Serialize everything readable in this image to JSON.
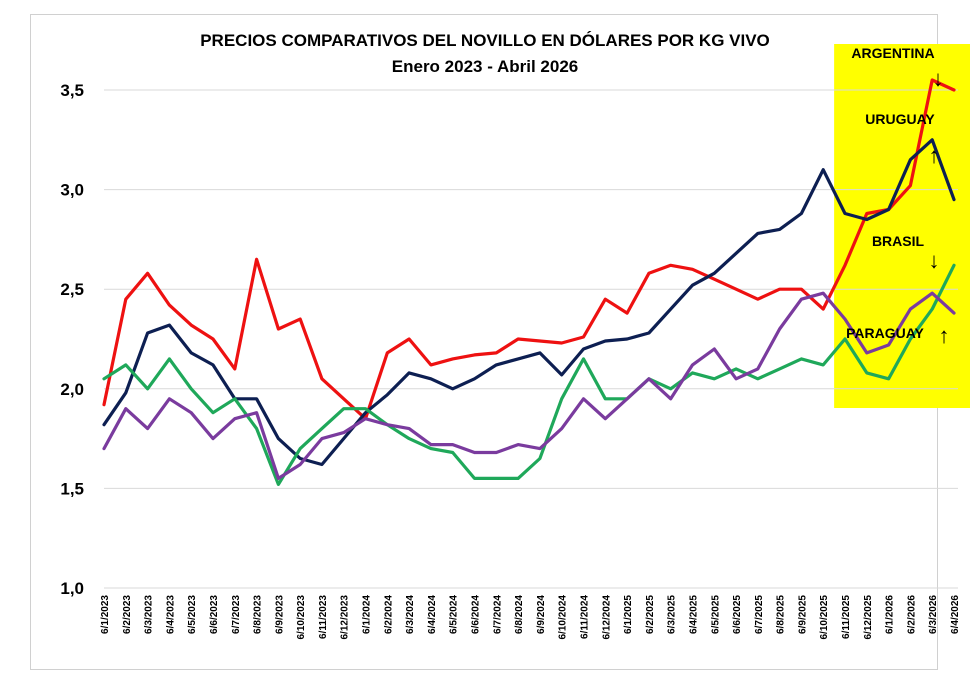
{
  "chart_data": {
    "type": "line",
    "title": "PRECIOS COMPARATIVOS DEL NOVILLO EN DÓLARES POR KG VIVO",
    "subtitle": "Enero 2023 - Abril 2026",
    "xlabel": "",
    "ylabel": "",
    "ylim": [
      1.0,
      3.5
    ],
    "yticks": [
      "1,0",
      "1,5",
      "2,0",
      "2,5",
      "3,0",
      "3,5"
    ],
    "ytick_values": [
      1.0,
      1.5,
      2.0,
      2.5,
      3.0,
      3.5
    ],
    "grid": true,
    "x": [
      "6/1/2023",
      "6/2/2023",
      "6/3/2023",
      "6/4/2023",
      "6/5/2023",
      "6/6/2023",
      "6/7/2023",
      "6/8/2023",
      "6/9/2023",
      "6/10/2023",
      "6/11/2023",
      "6/12/2023",
      "6/1/2024",
      "6/2/2024",
      "6/3/2024",
      "6/4/2024",
      "6/5/2024",
      "6/6/2024",
      "6/7/2024",
      "6/8/2024",
      "6/9/2024",
      "6/10/2024",
      "6/11/2024",
      "6/12/2024",
      "6/1/2025",
      "6/2/2025",
      "6/3/2025",
      "6/4/2025",
      "6/5/2025",
      "6/6/2025",
      "6/7/2025",
      "6/8/2025",
      "6/9/2025",
      "6/10/2025",
      "6/11/2025",
      "6/12/2025",
      "6/1/2026",
      "6/2/2026",
      "6/3/2026",
      "6/4/2026"
    ],
    "series": [
      {
        "name": "ARGENTINA",
        "color": "#ee1111",
        "values": [
          1.92,
          2.45,
          2.58,
          2.42,
          2.32,
          2.25,
          2.1,
          2.65,
          2.3,
          2.35,
          2.05,
          1.95,
          1.85,
          2.18,
          2.25,
          2.12,
          2.15,
          2.17,
          2.18,
          2.25,
          2.24,
          2.23,
          2.26,
          2.45,
          2.38,
          2.58,
          2.62,
          2.6,
          2.55,
          2.5,
          2.45,
          2.5,
          2.5,
          2.4,
          2.62,
          2.88,
          2.9,
          3.02,
          3.55,
          3.5
        ]
      },
      {
        "name": "URUGUAY",
        "color": "#0d1f52",
        "values": [
          1.82,
          1.98,
          2.28,
          2.32,
          2.18,
          2.12,
          1.95,
          1.95,
          1.75,
          1.65,
          1.62,
          1.75,
          1.88,
          1.97,
          2.08,
          2.05,
          2.0,
          2.05,
          2.12,
          2.15,
          2.18,
          2.07,
          2.2,
          2.24,
          2.25,
          2.28,
          2.4,
          2.52,
          2.58,
          2.68,
          2.78,
          2.8,
          2.88,
          3.1,
          2.88,
          2.85,
          2.9,
          3.15,
          3.25,
          2.95
        ]
      },
      {
        "name": "BRASIL",
        "color": "#1fa85a",
        "values": [
          2.05,
          2.12,
          2.0,
          2.15,
          2.0,
          1.88,
          1.95,
          1.8,
          1.52,
          1.7,
          1.8,
          1.9,
          1.9,
          1.82,
          1.75,
          1.7,
          1.68,
          1.55,
          1.55,
          1.55,
          1.65,
          1.95,
          2.15,
          1.95,
          1.95,
          2.05,
          2.0,
          2.08,
          2.05,
          2.1,
          2.05,
          2.1,
          2.15,
          2.12,
          2.25,
          2.08,
          2.05,
          2.25,
          2.4,
          2.62
        ]
      },
      {
        "name": "PARAGUAY",
        "color": "#7a3b9e",
        "values": [
          1.7,
          1.9,
          1.8,
          1.95,
          1.88,
          1.75,
          1.85,
          1.88,
          1.55,
          1.62,
          1.75,
          1.78,
          1.85,
          1.82,
          1.8,
          1.72,
          1.72,
          1.68,
          1.68,
          1.72,
          1.7,
          1.8,
          1.95,
          1.85,
          1.95,
          2.05,
          1.95,
          2.12,
          2.2,
          2.05,
          2.1,
          2.3,
          2.45,
          2.48,
          2.35,
          2.18,
          2.22,
          2.4,
          2.48,
          2.38
        ]
      }
    ],
    "annotations": [
      {
        "text": "ARGENTINA",
        "arrow": "↓"
      },
      {
        "text": "URUGUAY",
        "arrow": "↑"
      },
      {
        "text": "BRASIL",
        "arrow": "↓"
      },
      {
        "text": "PARAGUAY",
        "arrow": "↑"
      }
    ],
    "highlight": {
      "from": "6/11/2025",
      "to": "6/4/2026",
      "color": "#ffff00"
    }
  }
}
